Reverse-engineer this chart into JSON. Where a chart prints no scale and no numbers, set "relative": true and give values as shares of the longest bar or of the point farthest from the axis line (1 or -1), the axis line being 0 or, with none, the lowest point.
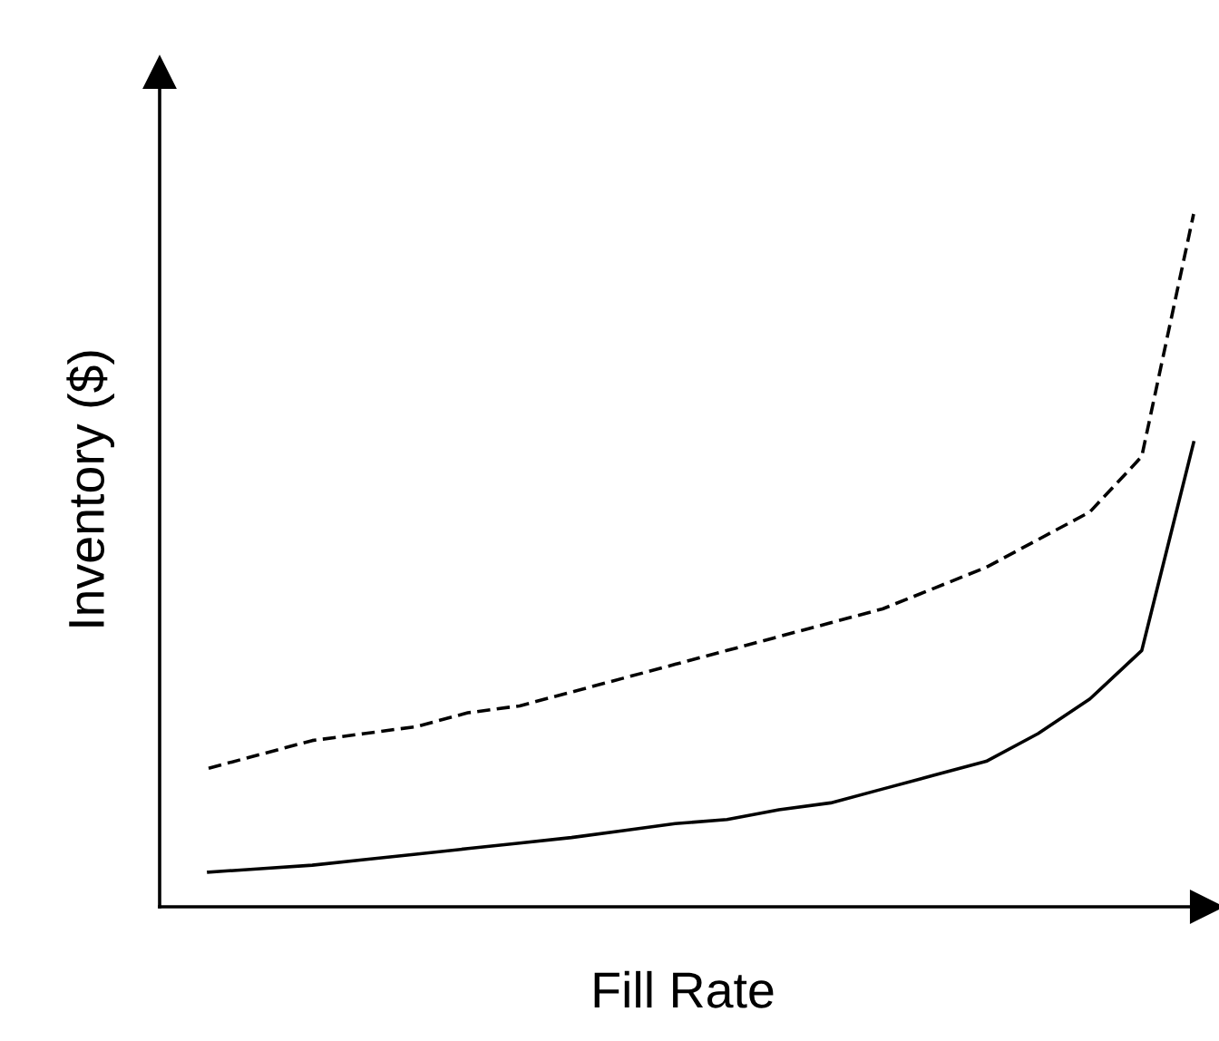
{
  "chart_data": {
    "type": "line",
    "relative": true,
    "xlabel": "Fill Rate",
    "ylabel": "Inventory ($)",
    "marker": "none",
    "categories": [
      null,
      null,
      null,
      null,
      null,
      null,
      null,
      null,
      null,
      null,
      null,
      null,
      null,
      null,
      null,
      null,
      null,
      null,
      null,
      null
    ],
    "series": [
      {
        "color": "#000000",
        "line_style": "dashed",
        "values": [
          0.2,
          0.22,
          0.24,
          0.25,
          0.26,
          0.28,
          0.29,
          0.31,
          0.33,
          0.35,
          0.37,
          0.39,
          0.41,
          0.43,
          0.46,
          0.49,
          0.53,
          0.57,
          0.65,
          1
        ]
      },
      {
        "color": "#000000",
        "line_style": "solid",
        "values": [
          0.05,
          0.055,
          0.06,
          0.068,
          0.076,
          0.084,
          0.092,
          0.1,
          0.11,
          0.12,
          0.126,
          0.14,
          0.15,
          0.17,
          0.19,
          0.21,
          0.25,
          0.3,
          0.37,
          0.67
        ]
      }
    ]
  }
}
